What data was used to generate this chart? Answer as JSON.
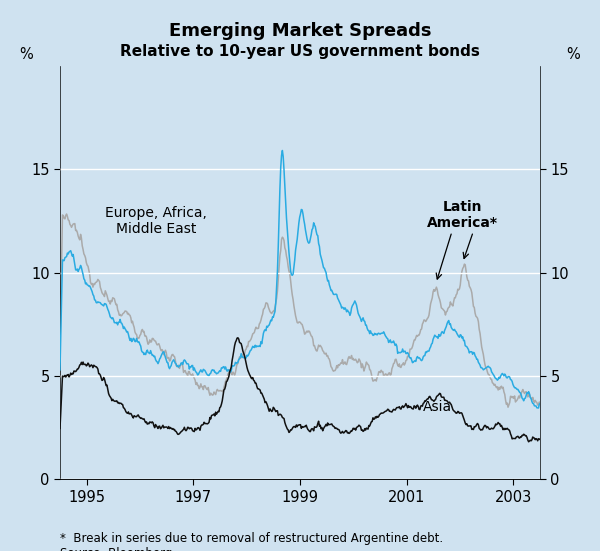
{
  "title": "Emerging Market Spreads",
  "subtitle": "Relative to 10-year US government bonds",
  "ylabel_left": "%",
  "ylabel_right": "%",
  "xlim": [
    1994.5,
    2003.5
  ],
  "ylim": [
    0,
    20
  ],
  "yticks": [
    0,
    5,
    10,
    15
  ],
  "xticks": [
    1995,
    1997,
    1999,
    2001,
    2003
  ],
  "background_color": "#cfe2f0",
  "plot_bg_color": "#cfe2f0",
  "color_europe": "#29abe2",
  "color_latin": "#aaaaaa",
  "color_asia": "#111111",
  "footnote": "*  Break in series due to removal of restructured Argentine debt.\nSource: Bloomberg",
  "label_europe": "Europe, Africa,\nMiddle East",
  "label_latin": "Latin\nAmerica*",
  "label_asia": "Asia"
}
